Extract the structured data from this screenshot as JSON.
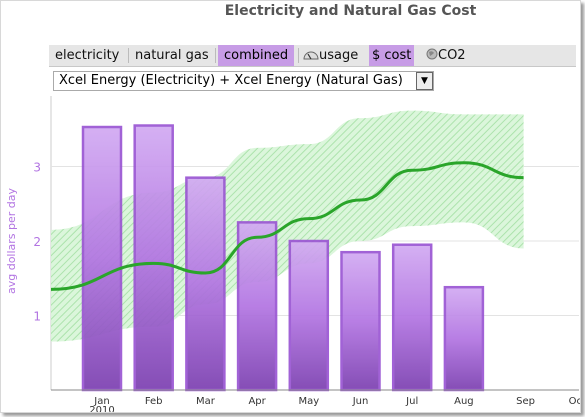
{
  "title": "Electricity and Natural Gas Cost",
  "tabs": {
    "electricity": "electricity",
    "natural_gas": "natural gas",
    "combined": "combined",
    "usage": "usage",
    "cost": "$ cost",
    "co2": "CO2"
  },
  "provider_select": {
    "value": "Xcel Energy (Electricity) + Xcel Energy (Natural Gas)"
  },
  "colors": {
    "bar": "#b274e2",
    "trend": "#2aa52a",
    "band": "#9fe49f",
    "tab_selected": "#c79ce6"
  },
  "chart_data": {
    "type": "bar",
    "ylabel": "avg dollars per day",
    "xlabel": "",
    "y_ticks": [
      "1",
      "2",
      "3"
    ],
    "ylim": [
      0,
      4
    ],
    "categories": [
      "Jan\n2010",
      "Feb",
      "Mar",
      "Apr",
      "May",
      "Jun",
      "Jul",
      "Aug",
      "Sep",
      "Oct"
    ],
    "bars": [
      3.53,
      3.55,
      2.85,
      2.25,
      2.0,
      1.85,
      1.95,
      1.38,
      null,
      null
    ],
    "trend": [
      1.35,
      1.7,
      1.57,
      2.05,
      2.3,
      2.55,
      2.95,
      3.05,
      2.85,
      null
    ],
    "band_upper": [
      2.15,
      2.65,
      2.85,
      3.25,
      3.3,
      3.65,
      3.75,
      3.7,
      3.7,
      null
    ],
    "band_lower": [
      0.65,
      0.85,
      1.15,
      1.45,
      1.7,
      2.0,
      2.2,
      2.25,
      1.9,
      null
    ]
  }
}
